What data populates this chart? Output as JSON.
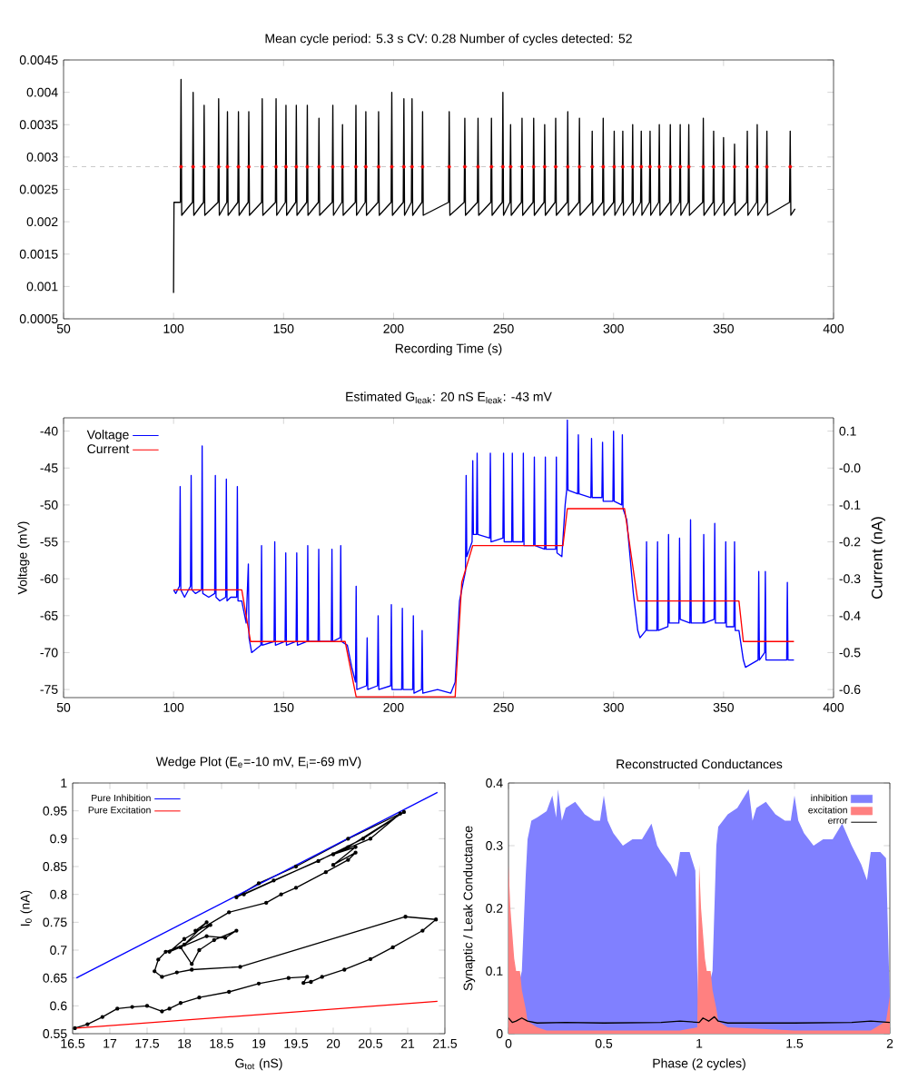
{
  "chart_data": [
    {
      "type": "line",
      "title": "Mean cycle period: 5.3 s    CV: 0.28    Number of cycles detected: 52",
      "xlabel": "Recording Time (s)",
      "xlim": [
        50,
        400
      ],
      "xticks": [
        50,
        100,
        150,
        200,
        250,
        300,
        350,
        400
      ],
      "ylim": [
        0.0005,
        0.0045
      ],
      "yticks": [
        0.0005,
        0.001,
        0.0015,
        0.002,
        0.0025,
        0.003,
        0.0035,
        0.004,
        0.0045
      ],
      "ref_lines": [
        {
          "axis": "y",
          "value": 0.00285,
          "color": "#bbbbbb",
          "line_style": "dashed"
        }
      ],
      "series": [
        {
          "type": "line",
          "color": "#000000",
          "x": [
            100,
            100.2,
            103.1,
            103.4,
            103.7,
            108.6,
            108.9,
            109.2,
            113.6,
            113.9,
            114.2,
            120.2,
            120.5,
            120.8,
            124.2,
            124.5,
            124.8,
            129.2,
            129.5,
            129.8,
            133.9,
            134.2,
            134.5,
            140,
            140.3,
            140.6,
            146.3,
            146.6,
            146.9,
            150.8,
            151.1,
            151.4,
            155.5,
            155.8,
            156.1,
            160.5,
            160.8,
            161.1,
            165.8,
            166.1,
            166.4,
            172.1,
            172.4,
            172.7,
            176.5,
            176.8,
            177.1,
            182.6,
            182.9,
            183.2,
            187.1,
            187.4,
            187.7,
            192.9,
            193.2,
            193.5,
            198.9,
            199.2,
            199.5,
            204.4,
            204.7,
            205,
            208.1,
            208.4,
            208.7,
            212.9,
            213.2,
            213.5,
            225,
            225.3,
            225.6,
            232.1,
            232.4,
            232.7,
            238.1,
            238.4,
            238.7,
            244.2,
            244.5,
            244.8,
            249.4,
            249.7,
            250,
            252.9,
            253.2,
            253.5,
            258.1,
            258.4,
            258.7,
            263.4,
            263.7,
            264,
            268.4,
            268.7,
            269,
            273.4,
            273.7,
            274,
            278.9,
            279.2,
            279.5,
            284.2,
            284.5,
            284.8,
            290,
            290.3,
            290.6,
            295,
            295.3,
            295.6,
            300,
            300.3,
            300.6,
            303.9,
            304.2,
            304.5,
            308.4,
            308.7,
            309,
            312.3,
            312.6,
            312.9,
            316.3,
            316.6,
            316.9,
            320.5,
            320.8,
            321.1,
            325.5,
            325.8,
            326.1,
            330,
            330.3,
            330.6,
            333.9,
            334.2,
            334.5,
            340.5,
            340.8,
            341.1,
            345.2,
            345.5,
            345.8,
            349.7,
            350,
            350.3,
            354.7,
            355,
            355.3,
            360.5,
            360.8,
            361.1,
            365,
            365.3,
            365.6,
            369.4,
            369.7,
            370,
            380,
            380.3,
            380.6,
            382.5
          ],
          "values": [
            0.0009,
            0.0023,
            0.0023,
            0.0042,
            0.0021,
            0.0023,
            0.004,
            0.0021,
            0.0023,
            0.0038,
            0.0021,
            0.0023,
            0.0039,
            0.0021,
            0.0023,
            0.0037,
            0.0021,
            0.0023,
            0.0037,
            0.0021,
            0.0023,
            0.0037,
            0.0021,
            0.0023,
            0.0039,
            0.0021,
            0.0023,
            0.0039,
            0.0021,
            0.0023,
            0.0038,
            0.0021,
            0.0023,
            0.0038,
            0.0021,
            0.0023,
            0.0038,
            0.0021,
            0.0023,
            0.0036,
            0.0021,
            0.0023,
            0.0038,
            0.0021,
            0.0023,
            0.0035,
            0.0021,
            0.0023,
            0.0038,
            0.0021,
            0.0023,
            0.0037,
            0.0021,
            0.0023,
            0.0037,
            0.0021,
            0.0023,
            0.004,
            0.0021,
            0.0023,
            0.0039,
            0.0021,
            0.0023,
            0.0039,
            0.0021,
            0.0023,
            0.0037,
            0.0021,
            0.0023,
            0.0037,
            0.0021,
            0.0023,
            0.0036,
            0.0021,
            0.0023,
            0.0036,
            0.0021,
            0.0023,
            0.0036,
            0.0021,
            0.0023,
            0.004,
            0.0021,
            0.0023,
            0.0035,
            0.0021,
            0.0023,
            0.0036,
            0.0021,
            0.0023,
            0.0036,
            0.0021,
            0.0023,
            0.0035,
            0.0021,
            0.0023,
            0.0036,
            0.0021,
            0.0023,
            0.0037,
            0.0021,
            0.0023,
            0.0036,
            0.0021,
            0.0023,
            0.0034,
            0.0021,
            0.0023,
            0.0036,
            0.0021,
            0.0023,
            0.0034,
            0.0021,
            0.0023,
            0.0034,
            0.0021,
            0.0023,
            0.0035,
            0.0021,
            0.0023,
            0.0034,
            0.0021,
            0.0023,
            0.0034,
            0.0021,
            0.0023,
            0.0035,
            0.0021,
            0.0023,
            0.0035,
            0.0021,
            0.0023,
            0.0035,
            0.0021,
            0.0023,
            0.0035,
            0.0021,
            0.0023,
            0.0036,
            0.0021,
            0.0023,
            0.0034,
            0.0021,
            0.0023,
            0.0033,
            0.0021,
            0.0023,
            0.0032,
            0.0021,
            0.0023,
            0.0034,
            0.0021,
            0.0023,
            0.0035,
            0.0021,
            0.0023,
            0.0034,
            0.0021,
            0.0023,
            0.0034,
            0.0021,
            0.0022
          ]
        },
        {
          "type": "scatter",
          "color": "#ff0000",
          "marker": "circle",
          "x": [
            103.4,
            108.9,
            113.9,
            120.5,
            124.5,
            129.5,
            134.2,
            140.3,
            146.6,
            151.1,
            155.8,
            160.8,
            166.1,
            172.4,
            176.8,
            182.9,
            187.4,
            193.2,
            199.2,
            204.7,
            208.4,
            213.2,
            225.3,
            232.4,
            238.4,
            244.5,
            249.7,
            253.2,
            258.4,
            263.7,
            268.7,
            273.7,
            279.2,
            284.5,
            290.3,
            295.3,
            300.3,
            304.2,
            308.7,
            312.6,
            316.6,
            320.8,
            325.8,
            330.3,
            334.2,
            340.8,
            345.5,
            350,
            355,
            360.8,
            365.3,
            369.7,
            380.3
          ],
          "values": [
            0.00285,
            0.00285,
            0.00285,
            0.00285,
            0.00285,
            0.00285,
            0.00285,
            0.00285,
            0.00285,
            0.00285,
            0.00285,
            0.00285,
            0.00285,
            0.00285,
            0.00285,
            0.00285,
            0.00285,
            0.00285,
            0.00285,
            0.00285,
            0.00285,
            0.00285,
            0.00285,
            0.00285,
            0.00285,
            0.00285,
            0.00285,
            0.00285,
            0.00285,
            0.00285,
            0.00285,
            0.00285,
            0.00285,
            0.00285,
            0.00285,
            0.00285,
            0.00285,
            0.00285,
            0.00285,
            0.00285,
            0.00285,
            0.00285,
            0.00285,
            0.00285,
            0.00285,
            0.00285,
            0.00285,
            0.00285,
            0.00285,
            0.00285,
            0.00285,
            0.00285,
            0.00285
          ]
        }
      ]
    },
    {
      "type": "line",
      "title": "Estimated G$_{leak}$: 20 nS    E$_{leak}$: -43 mV",
      "ylabel": "Voltage (mV)",
      "y2label": "Current (nA)",
      "legend": "top left",
      "xlim": [
        50,
        400
      ],
      "xticks": [
        50,
        100,
        150,
        200,
        250,
        300,
        350,
        400
      ],
      "ylim": [
        -76.1,
        -38.2
      ],
      "yticks": [
        -75,
        -70,
        -65,
        -60,
        -55,
        -50,
        -45,
        -40
      ],
      "y2lim": [
        -0.622,
        0.136
      ],
      "y2ticks": [
        -0.6,
        -0.5,
        -0.4,
        -0.3,
        -0.2,
        -0.1,
        {
          "value": 0,
          "label": "-0.0"
        },
        0.1
      ],
      "series": [
        {
          "name": "Voltage",
          "color": "#0000ff",
          "x": [
            100,
            101,
            102.7,
            103,
            103.3,
            105,
            107.7,
            108,
            108.3,
            110,
            112.7,
            113,
            113.3,
            116,
            118.7,
            119,
            119.3,
            121,
            123.7,
            124,
            124.3,
            126,
            128.7,
            129,
            129.3,
            131,
            133,
            134,
            134.3,
            135.5,
            139.7,
            140,
            140.3,
            145.7,
            146,
            146.3,
            150.7,
            151,
            151.3,
            155.7,
            156,
            156.3,
            160.7,
            161,
            161.3,
            165.7,
            166,
            166.3,
            171.7,
            172,
            172.3,
            175.7,
            176,
            176.3,
            179,
            181,
            182.7,
            183,
            183.3,
            187.7,
            188,
            188.3,
            192.7,
            193,
            193.3,
            198.7,
            199,
            199.3,
            203.7,
            204,
            204.3,
            208.7,
            209,
            209.3,
            212.7,
            213,
            213.3,
            220,
            226,
            228,
            230,
            232,
            232.7,
            233,
            233.3,
            235.7,
            236,
            236.3,
            237.7,
            238,
            238.3,
            243.7,
            244,
            244.3,
            249.7,
            250,
            250.3,
            253.7,
            254,
            254.3,
            258.7,
            259,
            259.3,
            263.7,
            264,
            264.3,
            268.7,
            269,
            269.3,
            273.7,
            274,
            274.3,
            276.5,
            278,
            278.7,
            279,
            279.3,
            283.7,
            284,
            284.3,
            289.7,
            290,
            290.3,
            294.7,
            295,
            295.3,
            299.7,
            300,
            300.3,
            303.7,
            304,
            304.3,
            306,
            309,
            311,
            312,
            314.7,
            315,
            315.3,
            319.7,
            320,
            320.3,
            324.7,
            325,
            325.3,
            329.7,
            330,
            330.3,
            334.7,
            335,
            335.3,
            340.7,
            341,
            341.3,
            345.7,
            346,
            346.3,
            350.7,
            351,
            351.3,
            354.7,
            355,
            355.3,
            357,
            359,
            360,
            365.7,
            366,
            366.3,
            368.7,
            369,
            369.3,
            375,
            378.7,
            379,
            379.3,
            382
          ],
          "values": [
            -61.5,
            -62,
            -61,
            -47.5,
            -61.5,
            -62.5,
            -61,
            -46,
            -61.5,
            -62,
            -61.5,
            -42,
            -62,
            -62.5,
            -62,
            -46,
            -62.5,
            -63,
            -62.5,
            -46.5,
            -63,
            -62.5,
            -62.5,
            -47.5,
            -63,
            -63,
            -66,
            -58,
            -68,
            -70,
            -69,
            -55.5,
            -69,
            -68.5,
            -55,
            -69,
            -68.5,
            -56.5,
            -69,
            -68.5,
            -56.5,
            -69,
            -68.5,
            -55.5,
            -68.5,
            -68.5,
            -56,
            -68.5,
            -68.5,
            -56,
            -68.5,
            -68,
            -55.5,
            -68.5,
            -69,
            -72,
            -74,
            -61,
            -75,
            -74.5,
            -68,
            -75,
            -74.5,
            -65,
            -75,
            -74.5,
            -63.5,
            -75,
            -75,
            -64,
            -75,
            -75,
            -65,
            -75.5,
            -75,
            -67,
            -75.5,
            -75,
            -75.5,
            -74,
            -63,
            -60,
            -59,
            -46,
            -57,
            -55,
            -44,
            -54,
            -54,
            -43,
            -54,
            -54.5,
            -43,
            -55,
            -54.5,
            -43,
            -55,
            -55,
            -43,
            -55,
            -55,
            -43,
            -55.5,
            -55.5,
            -43.5,
            -55.5,
            -56,
            -43.5,
            -56,
            -56,
            -43.5,
            -56.5,
            -57,
            -50,
            -48,
            -38.5,
            -48,
            -48.5,
            -40.5,
            -48.5,
            -49,
            -41,
            -49,
            -49,
            -41.5,
            -49.5,
            -49.5,
            -40,
            -49.5,
            -50,
            -40.5,
            -50.5,
            -52,
            -62,
            -67,
            -68,
            -67,
            -55,
            -67,
            -67,
            -55,
            -67,
            -66.5,
            -54,
            -66,
            -66,
            -54.5,
            -65.5,
            -66,
            -52,
            -66,
            -66,
            -54,
            -66,
            -65.5,
            -52.5,
            -66,
            -66,
            -55,
            -66.5,
            -66.5,
            -55,
            -67,
            -67,
            -71,
            -72,
            -71,
            -59,
            -71,
            -70,
            -59,
            -71,
            -71,
            -71,
            -60.5,
            -71,
            -71
          ]
        },
        {
          "name": "Current",
          "color": "#ff0000",
          "axis": "y2",
          "x": [
            100,
            131,
            135,
            178,
            183,
            228,
            231,
            233,
            236,
            277,
            279,
            305,
            311,
            357,
            359,
            382
          ],
          "values": [
            -0.33,
            -0.33,
            -0.47,
            -0.47,
            -0.62,
            -0.62,
            -0.31,
            -0.27,
            -0.21,
            -0.21,
            -0.11,
            -0.11,
            -0.36,
            -0.36,
            -0.47,
            -0.47
          ]
        }
      ]
    },
    {
      "type": "line",
      "title": "Wedge Plot (E$_{e}$=-10 mV, E$_{i}$=-69 mV)",
      "xlabel": "G$_{tot}$ (nS)",
      "ylabel": "I$_{0}$ (nA)",
      "legend": "top left",
      "xlim": [
        16.5,
        21.5
      ],
      "xticks": [
        16.5,
        17,
        17.5,
        18,
        18.5,
        19,
        19.5,
        20,
        20.5,
        21,
        21.5
      ],
      "ylim": [
        0.55,
        1
      ],
      "yticks": [
        0.55,
        0.6,
        0.65,
        0.7,
        0.75,
        0.8,
        0.85,
        0.9,
        0.95,
        1
      ],
      "series": [
        {
          "color": "#000000",
          "marker": "circle",
          "x": [
            16.53,
            16.7,
            16.9,
            17.1,
            17.3,
            17.5,
            17.7,
            17.8,
            17.95,
            18.2,
            18.6,
            19.0,
            19.4,
            19.65,
            19.6,
            19.7,
            19.85,
            20.15,
            20.5,
            20.8,
            21.2,
            21.38,
            20.97,
            18.75,
            18.1,
            17.9,
            17.7,
            17.6,
            17.65,
            17.75,
            18.0,
            18.3,
            18.15,
            18.35,
            17.95,
            18.1,
            18.2,
            18.4,
            18.7,
            18.55,
            18.3,
            17.8,
            18.0,
            18.6,
            19.1,
            19.3,
            19.5,
            19.9,
            20.2,
            20.3,
            20.0,
            20.3,
            20.0,
            20.5,
            20.9,
            20.2,
            19.5,
            19.0,
            18.7,
            19.2,
            19.8,
            20.4,
            20.95,
            20.2,
            18.8
          ],
          "values": [
            0.56,
            0.567,
            0.58,
            0.595,
            0.598,
            0.6,
            0.59,
            0.595,
            0.605,
            0.615,
            0.625,
            0.64,
            0.65,
            0.652,
            0.641,
            0.643,
            0.652,
            0.665,
            0.684,
            0.705,
            0.735,
            0.755,
            0.76,
            0.67,
            0.665,
            0.66,
            0.652,
            0.662,
            0.683,
            0.697,
            0.71,
            0.75,
            0.735,
            0.745,
            0.705,
            0.675,
            0.7,
            0.718,
            0.735,
            0.722,
            0.725,
            0.697,
            0.72,
            0.768,
            0.785,
            0.8,
            0.812,
            0.84,
            0.862,
            0.875,
            0.853,
            0.885,
            0.872,
            0.9,
            0.945,
            0.9,
            0.85,
            0.82,
            0.795,
            0.825,
            0.86,
            0.9,
            0.948,
            0.885,
            0.8
          ]
        },
        {
          "name": "Pure Inhibition",
          "color": "#0000ff",
          "x": [
            16.55,
            21.4
          ],
          "values": [
            0.65,
            0.983
          ]
        },
        {
          "name": "Pure Excitation",
          "color": "#ff0000",
          "x": [
            16.55,
            21.4
          ],
          "values": [
            0.56,
            0.608
          ]
        }
      ]
    },
    {
      "type": "area",
      "title": "Reconstructed Conductances",
      "xlabel": "Phase (2 cycles)",
      "ylabel": "Synaptic / Leak Conductance",
      "legend": "top right",
      "xlim": [
        0,
        2
      ],
      "xticks": [
        0,
        0.5,
        1,
        1.5,
        2
      ],
      "ylim": [
        0,
        0.4
      ],
      "yticks": [
        0,
        0.1,
        0.2,
        0.3,
        0.4
      ],
      "series": [
        {
          "name": "inhibition",
          "color": "#8080ff",
          "x": [
            0,
            0.07,
            0.09,
            0.1,
            0.12,
            0.15,
            0.2,
            0.23,
            0.25,
            0.26,
            0.28,
            0.3,
            0.35,
            0.4,
            0.45,
            0.48,
            0.5,
            0.52,
            0.55,
            0.6,
            0.65,
            0.7,
            0.75,
            0.78,
            0.8,
            0.85,
            0.88,
            0.9,
            0.95,
            0.98,
            0.99,
            1.0,
            1.07,
            1.09,
            1.1,
            1.15,
            1.2,
            1.24,
            1.26,
            1.28,
            1.3,
            1.35,
            1.4,
            1.45,
            1.48,
            1.5,
            1.52,
            1.55,
            1.6,
            1.65,
            1.7,
            1.75,
            1.8,
            1.85,
            1.88,
            1.9,
            1.95,
            1.98,
            2.0
          ],
          "values": [
            0.01,
            0.1,
            0.25,
            0.31,
            0.34,
            0.345,
            0.355,
            0.38,
            0.345,
            0.39,
            0.34,
            0.36,
            0.37,
            0.35,
            0.34,
            0.34,
            0.38,
            0.34,
            0.32,
            0.3,
            0.31,
            0.31,
            0.335,
            0.3,
            0.29,
            0.27,
            0.25,
            0.29,
            0.29,
            0.26,
            0.1,
            0.01,
            0.1,
            0.3,
            0.33,
            0.35,
            0.36,
            0.38,
            0.39,
            0.34,
            0.36,
            0.37,
            0.35,
            0.34,
            0.34,
            0.38,
            0.34,
            0.32,
            0.3,
            0.31,
            0.31,
            0.335,
            0.3,
            0.27,
            0.245,
            0.29,
            0.29,
            0.28,
            0.05
          ]
        },
        {
          "name": "excitation",
          "color": "#ff8080",
          "x": [
            0,
            0.01,
            0.03,
            0.04,
            0.06,
            0.07,
            0.09,
            0.1,
            0.15,
            0.2,
            0.5,
            0.9,
            0.99,
            1.0,
            1.01,
            1.03,
            1.04,
            1.06,
            1.07,
            1.09,
            1.1,
            1.15,
            1.5,
            1.9,
            1.98,
            2.0
          ],
          "values": [
            0.27,
            0.2,
            0.12,
            0.1,
            0.1,
            0.07,
            0.04,
            0.02,
            0.01,
            0.005,
            0.005,
            0.005,
            0.01,
            0.27,
            0.2,
            0.12,
            0.1,
            0.1,
            0.07,
            0.04,
            0.02,
            0.01,
            0.005,
            0.005,
            0.02,
            0.06
          ]
        },
        {
          "name": "error",
          "type": "line",
          "color": "#000000",
          "x": [
            0,
            0.02,
            0.04,
            0.07,
            0.1,
            0.15,
            0.3,
            0.5,
            0.8,
            0.9,
            1.0,
            1.02,
            1.05,
            1.08,
            1.1,
            1.15,
            1.5,
            1.8,
            1.9,
            2.0
          ],
          "values": [
            0.025,
            0.018,
            0.02,
            0.025,
            0.02,
            0.017,
            0.018,
            0.017,
            0.018,
            0.02,
            0.018,
            0.025,
            0.02,
            0.027,
            0.02,
            0.017,
            0.017,
            0.018,
            0.02,
            0.018
          ]
        }
      ]
    }
  ]
}
